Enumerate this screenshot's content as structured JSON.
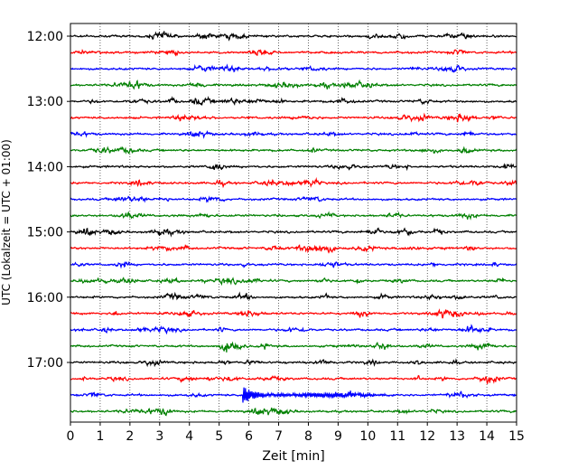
{
  "chart_data": {
    "type": "line",
    "title": "",
    "xlabel": "Zeit  [min]",
    "ylabel": "UTC (Lokalzeit = UTC + 01:00)",
    "xlim": [
      0,
      15
    ],
    "x_ticks": [
      "0",
      "1",
      "2",
      "3",
      "4",
      "5",
      "6",
      "7",
      "8",
      "9",
      "10",
      "11",
      "12",
      "13",
      "14",
      "15"
    ],
    "y_tick_labels": [
      "12:00",
      "13:00",
      "14:00",
      "15:00",
      "16:00",
      "17:00"
    ],
    "grid": "vertical dotted",
    "trace_colors": [
      "#000000",
      "#ff0000",
      "#0000ff",
      "#008000"
    ],
    "traces": [
      {
        "start": "12:00",
        "color": "#000000"
      },
      {
        "start": "12:15",
        "color": "#ff0000"
      },
      {
        "start": "12:30",
        "color": "#0000ff"
      },
      {
        "start": "12:45",
        "color": "#008000"
      },
      {
        "start": "13:00",
        "color": "#000000"
      },
      {
        "start": "13:15",
        "color": "#ff0000"
      },
      {
        "start": "13:30",
        "color": "#0000ff"
      },
      {
        "start": "13:45",
        "color": "#008000"
      },
      {
        "start": "14:00",
        "color": "#000000"
      },
      {
        "start": "14:15",
        "color": "#ff0000"
      },
      {
        "start": "14:30",
        "color": "#0000ff"
      },
      {
        "start": "14:45",
        "color": "#008000"
      },
      {
        "start": "15:00",
        "color": "#000000"
      },
      {
        "start": "15:15",
        "color": "#ff0000"
      },
      {
        "start": "15:30",
        "color": "#0000ff"
      },
      {
        "start": "15:45",
        "color": "#008000"
      },
      {
        "start": "16:00",
        "color": "#000000"
      },
      {
        "start": "16:15",
        "color": "#ff0000"
      },
      {
        "start": "16:30",
        "color": "#0000ff"
      },
      {
        "start": "16:45",
        "color": "#008000"
      },
      {
        "start": "17:00",
        "color": "#000000"
      },
      {
        "start": "17:15",
        "color": "#ff0000"
      },
      {
        "start": "17:30",
        "color": "#0000ff",
        "event_at_min": 5.8
      },
      {
        "start": "17:45",
        "color": "#008000"
      }
    ]
  }
}
